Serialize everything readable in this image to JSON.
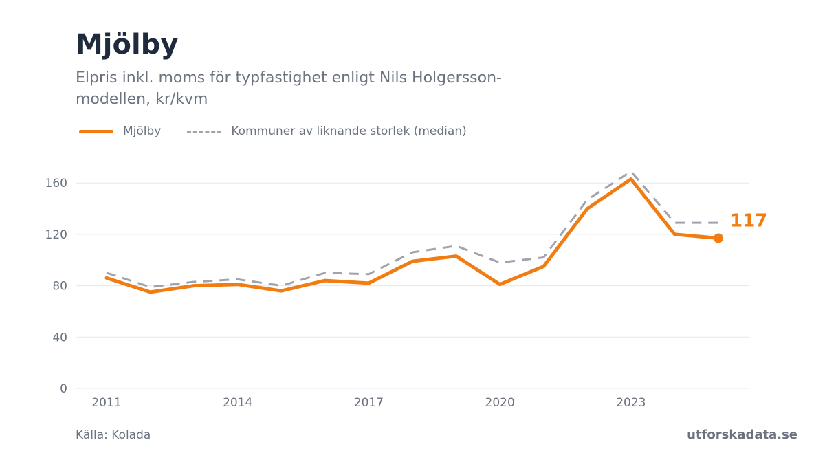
{
  "title": "Mjölby",
  "subtitle": "Elpris inkl. moms för typfastighet enligt Nils Holgersson-modellen, kr/kvm",
  "legend": {
    "series1": "Mjölby",
    "series2": "Kommuner av liknande storlek (median)"
  },
  "footer": {
    "source": "Källa: Kolada",
    "brand": "utforskadata.se"
  },
  "colors": {
    "primary": "#f07c12",
    "comparison": "#a0a3ae",
    "grid": "#e5e7eb",
    "text": "#6b7280"
  },
  "chart_data": {
    "type": "line",
    "x": [
      2011,
      2012,
      2013,
      2014,
      2015,
      2016,
      2017,
      2018,
      2019,
      2020,
      2021,
      2022,
      2023,
      2024,
      2025
    ],
    "series": [
      {
        "name": "Mjölby",
        "values": [
          86,
          75,
          80,
          81,
          76,
          84,
          82,
          99,
          103,
          81,
          95,
          140,
          163,
          120,
          117
        ],
        "style": "solid"
      },
      {
        "name": "Kommuner av liknande storlek (median)",
        "values": [
          90,
          79,
          83,
          85,
          80,
          90,
          89,
          106,
          111,
          98,
          102,
          147,
          169,
          129,
          129
        ],
        "style": "dashed"
      }
    ],
    "x_ticks": [
      2011,
      2014,
      2017,
      2020,
      2023
    ],
    "y_ticks": [
      0,
      40,
      80,
      120,
      160
    ],
    "ylim": [
      0,
      180
    ],
    "xlim": [
      2011,
      2025
    ],
    "end_label": "117",
    "grid": true,
    "legend_position": "top-left"
  }
}
